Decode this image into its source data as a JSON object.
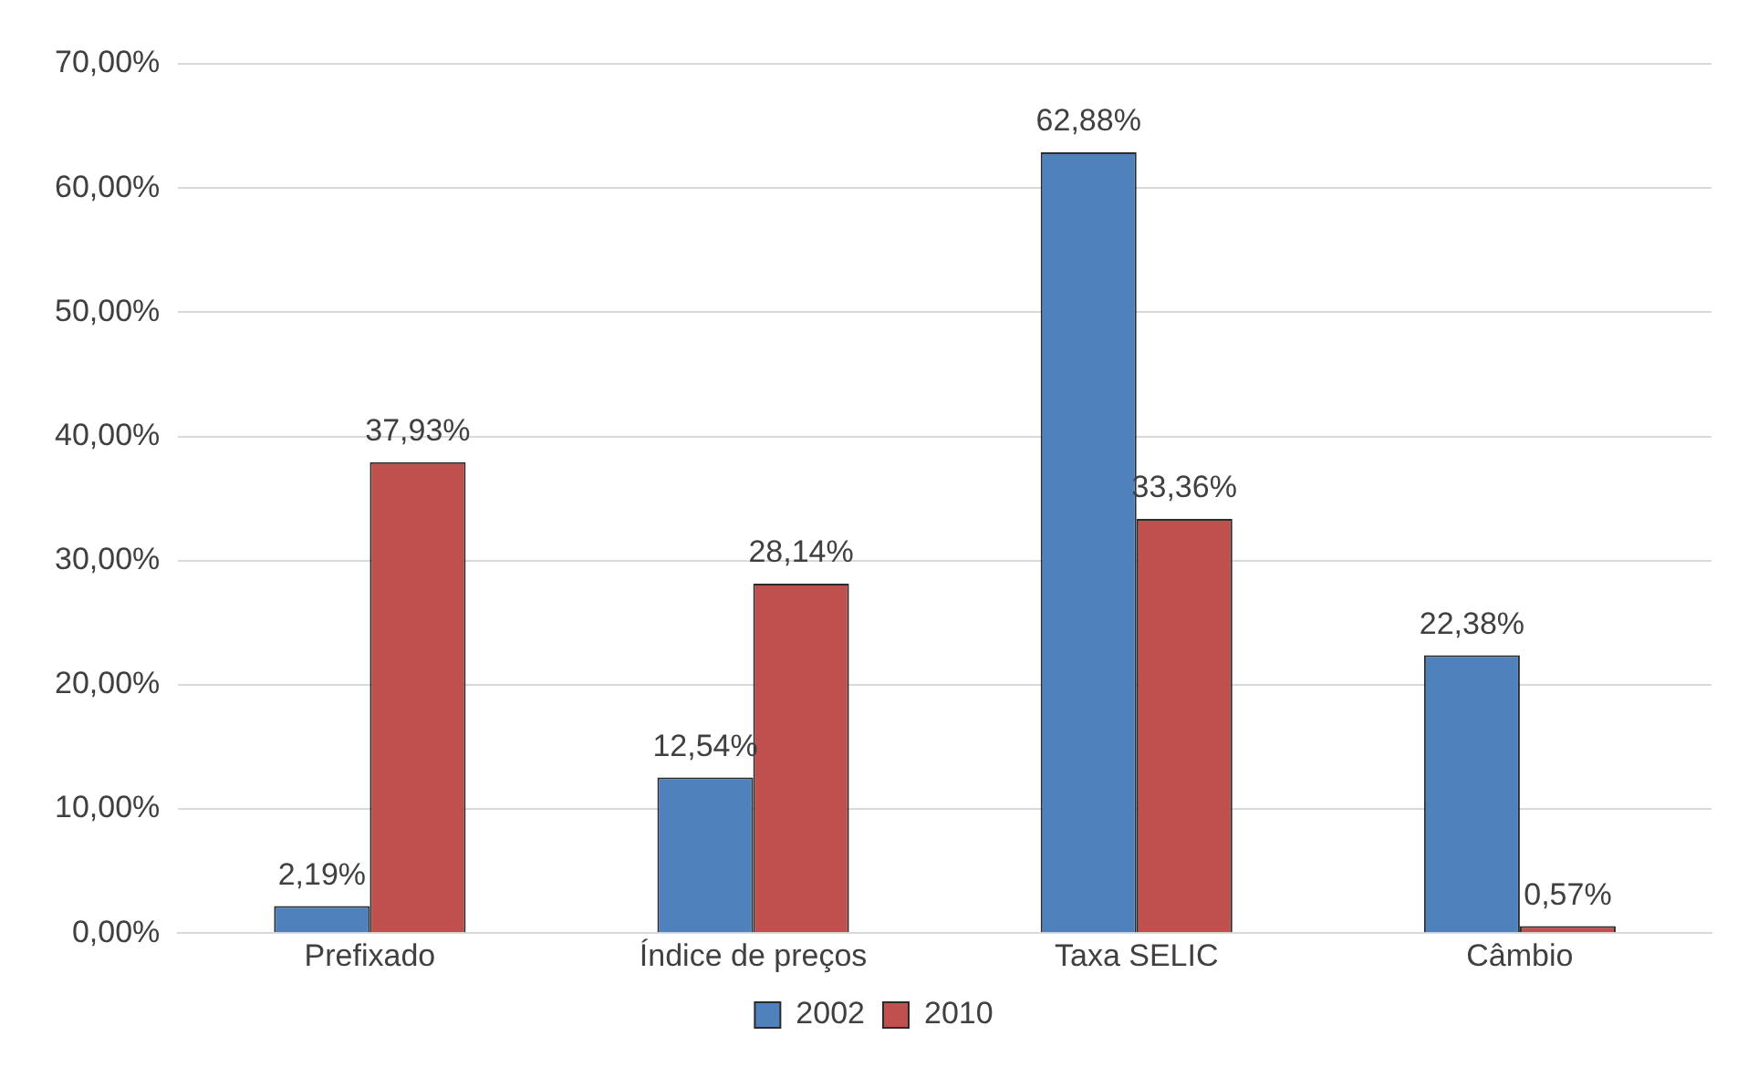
{
  "chart_data": {
    "type": "bar",
    "categories": [
      "Prefixado",
      "Índice de preços",
      "Taxa SELIC",
      "Câmbio"
    ],
    "series": [
      {
        "name": "2002",
        "color": "#4f81bd",
        "values": [
          2.19,
          12.54,
          62.88,
          22.38
        ],
        "value_labels": [
          "2,19%",
          "12,54%",
          "62,88%",
          "22,38%"
        ]
      },
      {
        "name": "2010",
        "color": "#c0504d",
        "values": [
          37.93,
          28.14,
          33.36,
          0.57
        ],
        "value_labels": [
          "37,93%",
          "28,14%",
          "33,36%",
          "0,57%"
        ]
      }
    ],
    "ylim": [
      0,
      70
    ],
    "yticks": [
      {
        "value": 0,
        "label": "0,00%"
      },
      {
        "value": 10,
        "label": "10,00%"
      },
      {
        "value": 20,
        "label": "20,00%"
      },
      {
        "value": 30,
        "label": "30,00%"
      },
      {
        "value": 40,
        "label": "40,00%"
      },
      {
        "value": 50,
        "label": "50,00%"
      },
      {
        "value": 60,
        "label": "60,00%"
      },
      {
        "value": 70,
        "label": "70,00%"
      }
    ],
    "grid": "y",
    "legend": "bottom"
  }
}
